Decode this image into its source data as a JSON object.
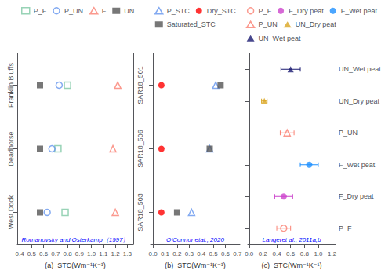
{
  "chart_data": [
    {
      "type": "scatter",
      "xlabel": "(a)  STC(Wm⁻¹K⁻¹)",
      "categories": [
        "West Dock",
        "Deadhorse",
        "Franklin Bluffs"
      ],
      "y2ticks": [
        {
          "value": 0,
          "label": "SAR18_503"
        },
        {
          "value": 1,
          "label": "SAR18_506"
        },
        {
          "value": 2,
          "label": "SAR18_501"
        }
      ],
      "series": [
        {
          "name": "P_F",
          "color": "#7EC8A4",
          "marker": "square-open",
          "values": [
            0.78,
            0.72,
            0.8
          ]
        },
        {
          "name": "P_UN",
          "color": "#6495ED",
          "marker": "circle-open",
          "values": [
            0.63,
            0.67,
            0.73
          ]
        },
        {
          "name": "F",
          "color": "#FA8072",
          "marker": "triangle-open",
          "values": [
            1.2,
            1.18,
            1.22
          ]
        },
        {
          "name": "UN",
          "color": "#555555",
          "marker": "square",
          "values": [
            0.57,
            0.57,
            0.57
          ]
        }
      ],
      "xlim": [
        0.38,
        1.35
      ],
      "xticks": [
        0.4,
        0.5,
        0.6,
        0.7,
        0.8,
        0.9,
        {
          "value": 1,
          "label": "1.0"
        },
        1.1,
        1.2,
        1.3
      ],
      "annotations": [
        {
          "text": "Romanovsky and Osterkamp（1997）",
          "color": "blue"
        }
      ],
      "legend": "upper left",
      "grid": false
    },
    {
      "type": "scatter",
      "xlabel": "(b)  STC(Wm⁻¹K⁻¹)",
      "categories": [
        null,
        null,
        null
      ],
      "tick_labels": "x",
      "series": [
        {
          "name": "P_STC",
          "color": "#6495ED",
          "marker": "triangle-open",
          "values": [
            0.32,
            0.47,
            0.52
          ]
        },
        {
          "name": "Dry_STC",
          "color": "#FF0000",
          "marker": "circle",
          "values": [
            0.07,
            0.07,
            0.07
          ]
        },
        {
          "name": "Saturated_STC",
          "color": "#555555",
          "marker": "square",
          "values": [
            0.2,
            0.47,
            0.56
          ]
        }
      ],
      "xlim": [
        -0.02,
        0.72
      ],
      "xticks": [
        {
          "value": 0,
          "label": "0.0"
        },
        0.1,
        0.2,
        0.3,
        0.4,
        0.5,
        0.6,
        0.7
      ],
      "annotations": [
        {
          "text": "O’Connor etal., 2020",
          "color": "blue"
        }
      ],
      "legend": "upper left",
      "grid": false
    },
    {
      "type": "scatter",
      "xlabel": "(c)  STC(Wm⁻¹K⁻¹)",
      "categories": [
        null,
        null,
        null,
        null,
        null,
        null
      ],
      "y2ticks": [
        {
          "value": 0,
          "label": "P_F"
        },
        {
          "value": 1,
          "label": "F_Dry peat"
        },
        {
          "value": 2,
          "label": "F_Wet peat"
        },
        {
          "value": 3,
          "label": "P_UN"
        },
        {
          "value": 4,
          "label": "UN_Dry peat"
        },
        {
          "value": 5,
          "label": "UN_Wet peat"
        }
      ],
      "series": [
        {
          "name": "P_F",
          "color": "#FA8072",
          "marker": "circle-open",
          "values": [
            0.5,
            null,
            null,
            null,
            null,
            null
          ],
          "errors": [
            0.1,
            null,
            null,
            null,
            null,
            null
          ]
        },
        {
          "name": "F_Dry peat",
          "color": "#CC44CC",
          "marker": "circle",
          "values": [
            null,
            0.5,
            null,
            null,
            null,
            null
          ],
          "errors": [
            null,
            0.13,
            null,
            null,
            null,
            null
          ]
        },
        {
          "name": "F_Wet peat",
          "color": "#1E90FF",
          "marker": "circle",
          "values": [
            null,
            null,
            0.87,
            null,
            null,
            null
          ],
          "errors": [
            null,
            null,
            0.13,
            null,
            null,
            null
          ]
        },
        {
          "name": "P_UN",
          "color": "#FA8072",
          "marker": "triangle-open",
          "values": [
            null,
            null,
            null,
            0.55,
            null,
            null
          ],
          "errors": [
            null,
            null,
            null,
            0.1,
            null,
            null
          ]
        },
        {
          "name": "UN_Dry peat",
          "color": "#DAA520",
          "marker": "triangle",
          "values": [
            null,
            null,
            null,
            null,
            0.22,
            null
          ],
          "errors": [
            null,
            null,
            null,
            null,
            0.04,
            null
          ]
        },
        {
          "name": "UN_Wet peat",
          "color": "#191970",
          "marker": "triangle",
          "values": [
            null,
            null,
            null,
            null,
            null,
            0.6
          ],
          "errors": [
            null,
            null,
            null,
            null,
            null,
            0.14
          ]
        }
      ],
      "xlim": [
        -0.02,
        1.25
      ],
      "xticks": [
        {
          "value": 0,
          "label": "0.0"
        },
        0.2,
        0.4,
        0.6,
        0.8,
        {
          "value": 1,
          "label": "1.0"
        },
        1.2
      ],
      "annotations": [
        {
          "text": "Langeret al., 2011a;b",
          "color": "blue"
        }
      ],
      "legend": "upper right",
      "grid": false
    }
  ]
}
